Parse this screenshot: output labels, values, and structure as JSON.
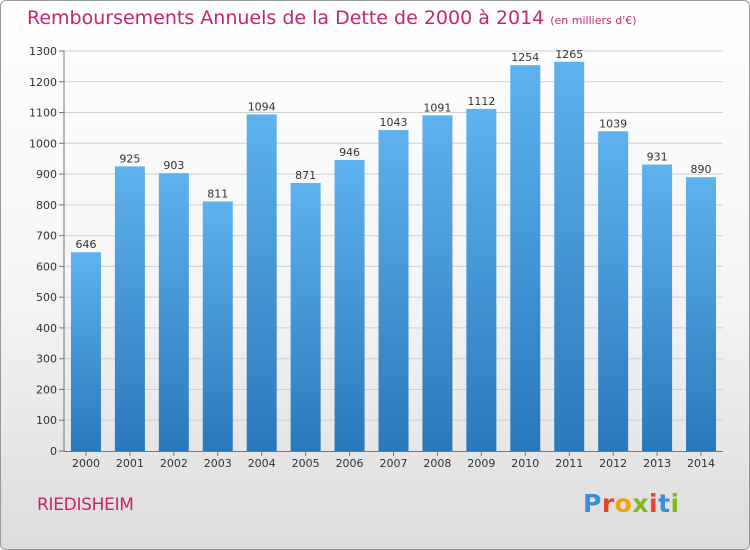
{
  "title": {
    "main": "Remboursements Annuels de la Dette de 2000 à 2014",
    "unit": "(en milliers d'€)"
  },
  "city": "RIEDISHEIM",
  "logo": {
    "letters": [
      {
        "char": "P",
        "color": "#3a8fd6"
      },
      {
        "char": "r",
        "color": "#e8442c"
      },
      {
        "char": "o",
        "color": "#f0a400"
      },
      {
        "char": "x",
        "color": "#7fb91d"
      },
      {
        "char": "i",
        "color": "#e8442c"
      },
      {
        "char": "t",
        "color": "#3a8fd6"
      },
      {
        "char": "i",
        "color": "#7fb91d"
      }
    ]
  },
  "chart_data": {
    "type": "bar",
    "categories": [
      "2000",
      "2001",
      "2002",
      "2003",
      "2004",
      "2005",
      "2006",
      "2007",
      "2008",
      "2009",
      "2010",
      "2011",
      "2012",
      "2013",
      "2014"
    ],
    "values": [
      646,
      925,
      903,
      811,
      1094,
      871,
      946,
      1043,
      1091,
      1112,
      1254,
      1265,
      1039,
      931,
      890
    ],
    "ylim": [
      0,
      1300
    ],
    "yticks": [
      0,
      100,
      200,
      300,
      400,
      500,
      600,
      700,
      800,
      900,
      1000,
      1100,
      1200,
      1300
    ],
    "grid": true,
    "bar_color_top": "#5eb2ee",
    "bar_color_bottom": "#2a78bc"
  }
}
